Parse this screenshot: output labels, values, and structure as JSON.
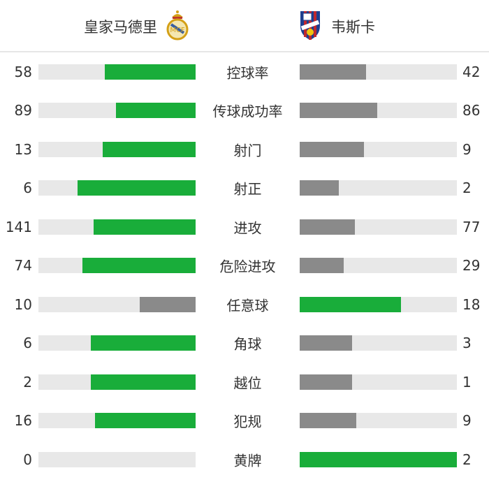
{
  "colors": {
    "leader": "#19ad3a",
    "trailer": "#8a8a8a",
    "track": "#e8e8e8"
  },
  "home": {
    "name": "皇家马德里",
    "logo": "real-madrid-crest"
  },
  "away": {
    "name": "韦斯卡",
    "logo": "huesca-crest"
  },
  "stats": [
    {
      "label": "控球率",
      "home": 58,
      "away": 42
    },
    {
      "label": "传球成功率",
      "home": 89,
      "away": 86
    },
    {
      "label": "射门",
      "home": 13,
      "away": 9
    },
    {
      "label": "射正",
      "home": 6,
      "away": 2
    },
    {
      "label": "进攻",
      "home": 141,
      "away": 77
    },
    {
      "label": "危险进攻",
      "home": 74,
      "away": 29
    },
    {
      "label": "任意球",
      "home": 10,
      "away": 18
    },
    {
      "label": "角球",
      "home": 6,
      "away": 3
    },
    {
      "label": "越位",
      "home": 2,
      "away": 1
    },
    {
      "label": "犯规",
      "home": 16,
      "away": 9
    },
    {
      "label": "黄牌",
      "home": 0,
      "away": 2
    }
  ]
}
